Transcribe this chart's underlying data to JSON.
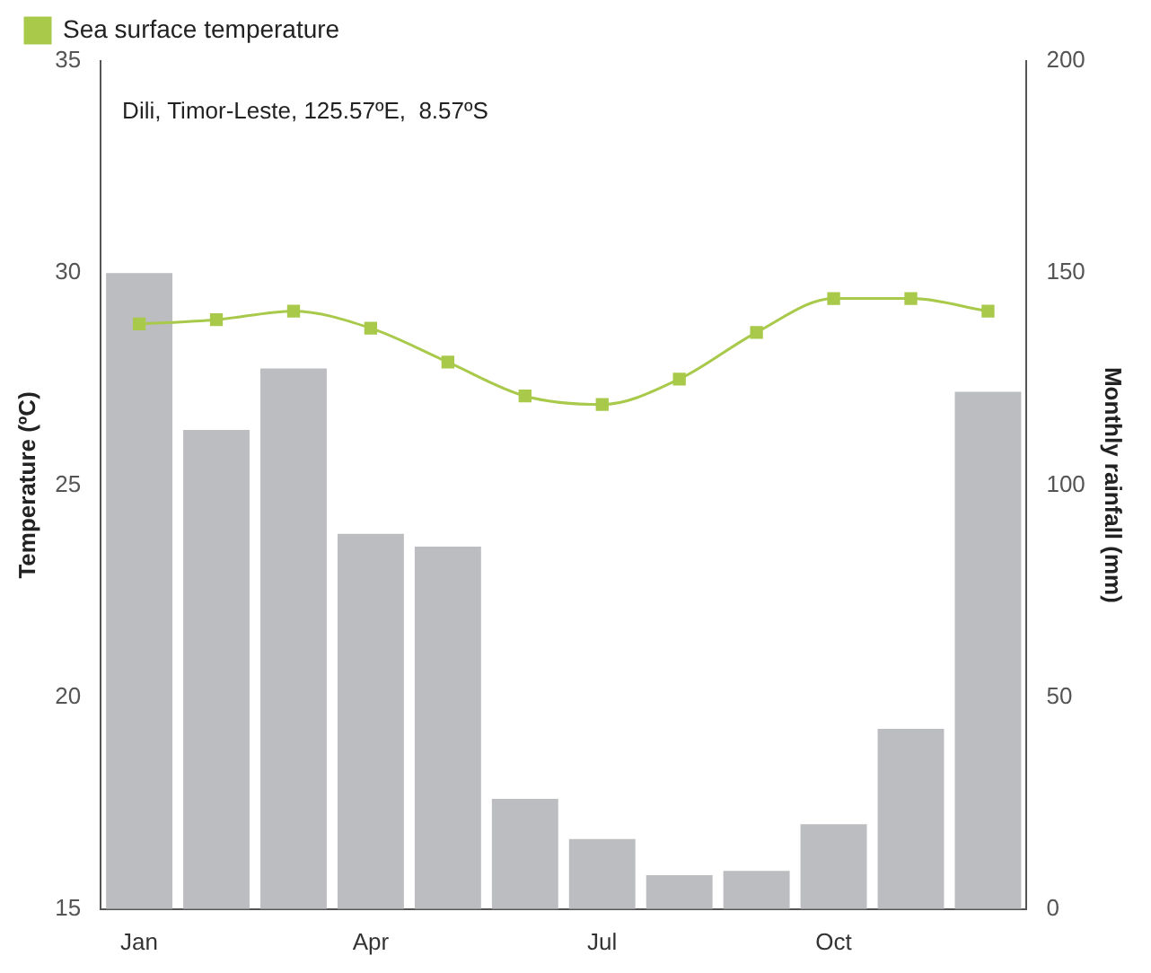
{
  "chart_data": {
    "type": "bar",
    "ylabel": "Temperature (ºC)",
    "y2label": "Monthly rainfall (mm)",
    "categories": [
      "Jan",
      null,
      null,
      "Apr",
      null,
      null,
      "Jul",
      null,
      null,
      "Oct",
      null,
      null
    ],
    "series": [
      {
        "axis": "y2",
        "color": "#bcbdc0",
        "values": [
          150,
          113,
          127.5,
          88.5,
          85.5,
          26,
          16.5,
          8,
          9,
          20,
          42.5,
          122
        ]
      },
      {
        "type": "line",
        "name": "Sea surface temperature",
        "color": "#a8c94a",
        "values": [
          28.8,
          28.9,
          29.1,
          28.7,
          27.9,
          27.1,
          26.9,
          27.5,
          28.6,
          29.4,
          29.4,
          29.1
        ]
      }
    ],
    "ylim": [
      15,
      35
    ],
    "yticks": [
      15,
      20,
      25,
      30,
      35
    ],
    "y2lim": [
      0,
      200
    ],
    "y2ticks": [
      0,
      50,
      100,
      150,
      200
    ],
    "legend": "top left",
    "marker": "square",
    "annotations": [
      "Dili, Timor-Leste, 125.57ºE,  8.57ºS"
    ]
  }
}
